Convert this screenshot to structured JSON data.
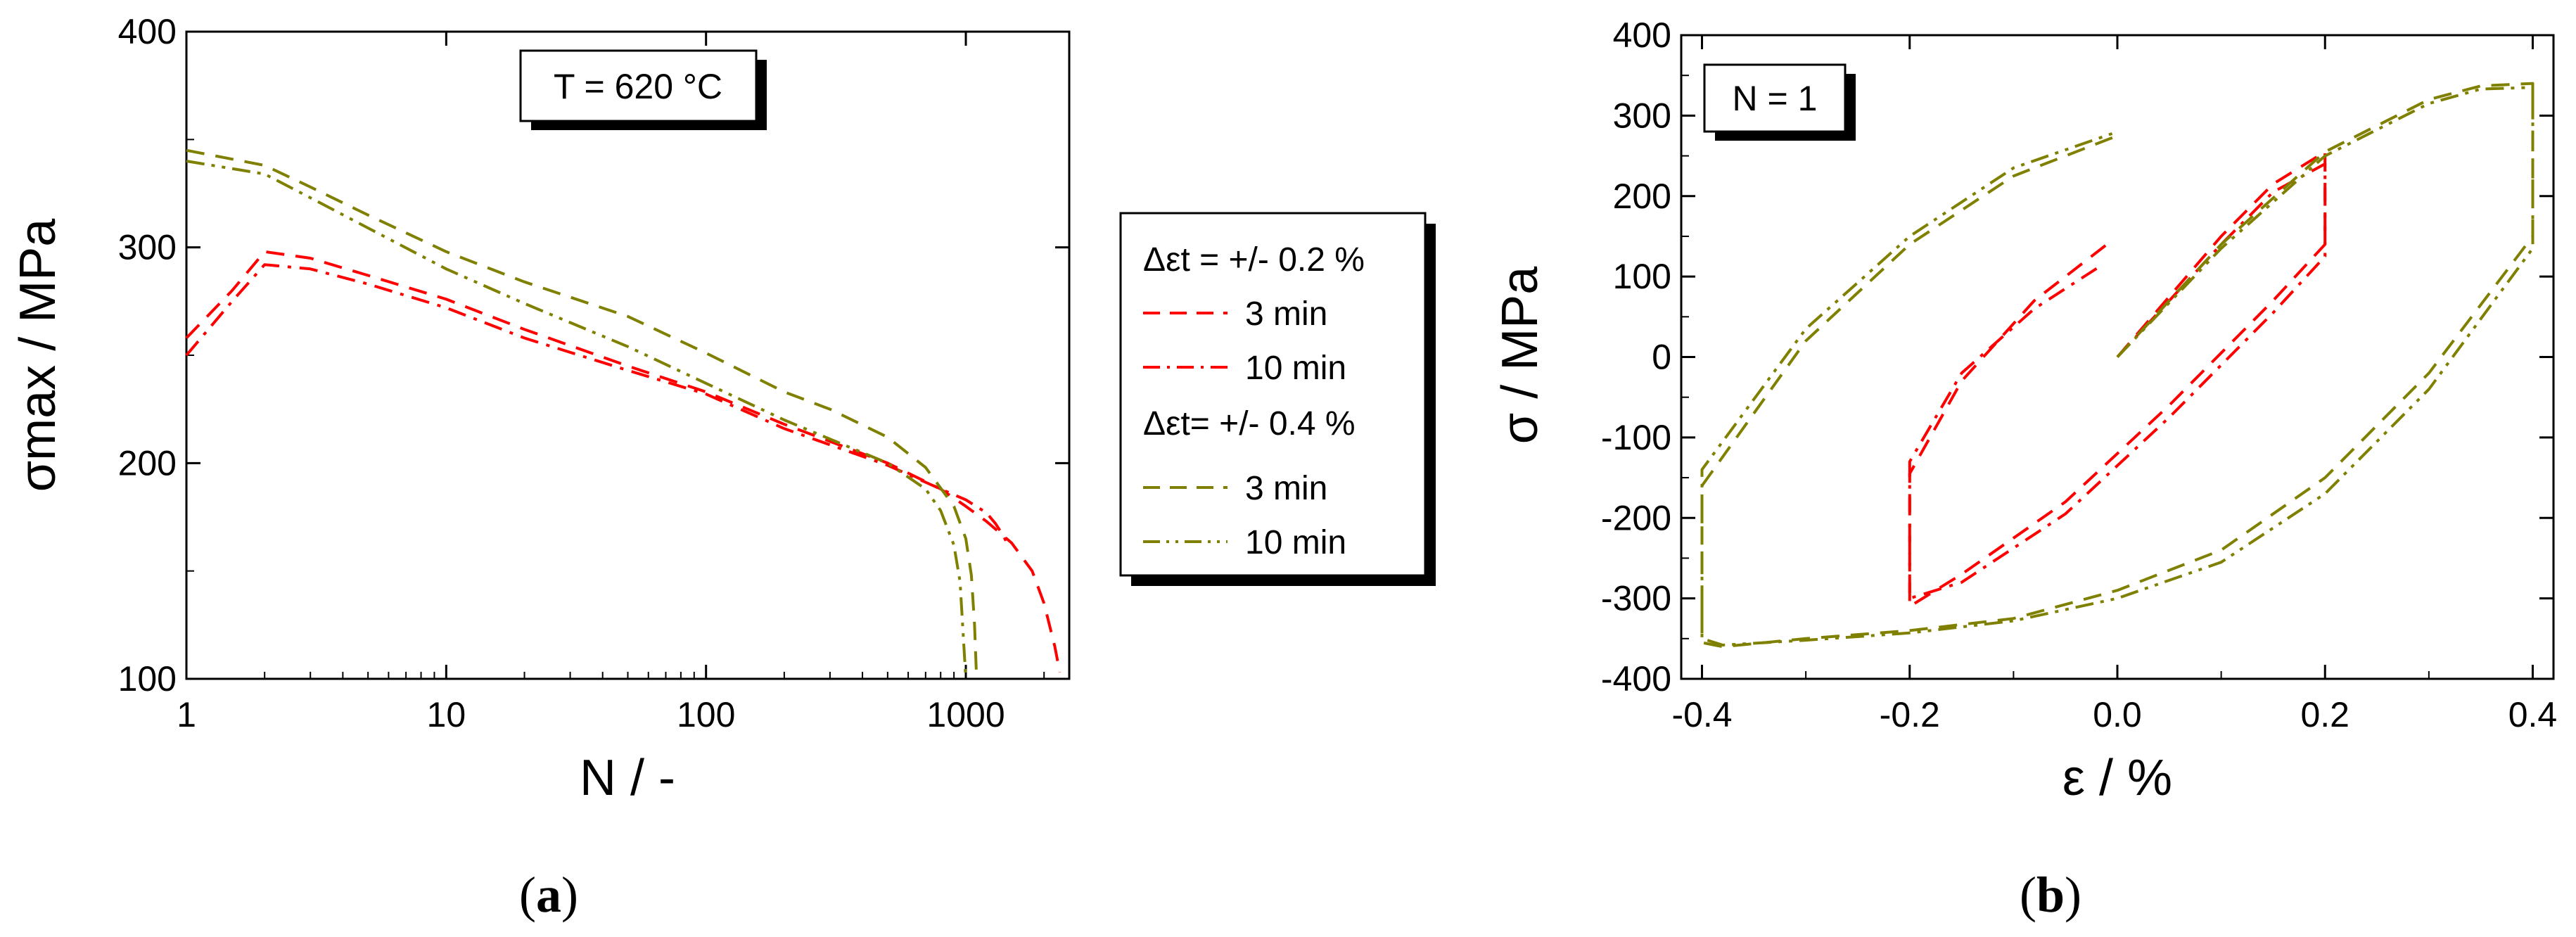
{
  "panel_labels": {
    "a": "a",
    "b": "b"
  },
  "chart_data": [
    {
      "type": "line",
      "panel": "a",
      "xlabel": "N / -",
      "ylabel": "σmax / MPa",
      "xscale": "log",
      "xlim": [
        1,
        2500
      ],
      "ylim": [
        100,
        400
      ],
      "xticks": [
        1,
        10,
        100,
        1000
      ],
      "xtick_labels": [
        "1",
        "10",
        "100",
        "1000"
      ],
      "yticks": [
        100,
        200,
        300,
        400
      ],
      "ytick_labels": [
        "100",
        "200",
        "300",
        "400"
      ],
      "annotation": "T = 620 °C",
      "legend": {
        "placement": "right, outside",
        "groups": [
          {
            "header": "Δεt = +/- 0.2 %",
            "entries": [
              "3 min",
              "10 min"
            ]
          },
          {
            "header": "Δεt= +/- 0.4 %",
            "entries": [
              "3 min",
              "10 min"
            ]
          }
        ]
      },
      "series": [
        {
          "name": "+/- 0.2 %, 3 min",
          "color": "#ff0000",
          "dash": "dashed",
          "x": [
            1,
            1.5,
            2,
            3,
            5,
            10,
            20,
            50,
            100,
            200,
            500,
            800,
            1000,
            1200,
            1500,
            1800,
            2000,
            2200,
            2300
          ],
          "y": [
            258,
            280,
            298,
            295,
            287,
            276,
            262,
            245,
            233,
            218,
            200,
            188,
            180,
            173,
            163,
            150,
            135,
            115,
            103
          ]
        },
        {
          "name": "+/- 0.2 %, 10 min",
          "color": "#ff0000",
          "dash": "dashdot",
          "x": [
            1,
            1.5,
            2,
            3,
            5,
            10,
            20,
            50,
            100,
            200,
            500,
            800,
            1000,
            1200,
            1300,
            1400,
            1450
          ],
          "y": [
            250,
            275,
            292,
            290,
            283,
            272,
            258,
            243,
            232,
            216,
            199,
            188,
            183,
            177,
            172,
            166,
            162
          ]
        },
        {
          "name": "+/- 0.4 %, 3 min",
          "color": "#808000",
          "dash": "dashed",
          "x": [
            1,
            2,
            3,
            5,
            10,
            20,
            50,
            100,
            200,
            300,
            500,
            700,
            900,
            1000,
            1050,
            1080,
            1100
          ],
          "y": [
            345,
            338,
            328,
            315,
            298,
            284,
            268,
            251,
            233,
            225,
            212,
            198,
            180,
            165,
            148,
            125,
            100
          ]
        },
        {
          "name": "+/- 0.4 %, 10 min",
          "color": "#808000",
          "dash": "dashdotdot",
          "x": [
            1,
            2,
            3,
            5,
            10,
            20,
            50,
            100,
            200,
            500,
            700,
            800,
            900,
            950,
            1000
          ],
          "y": [
            340,
            334,
            323,
            309,
            290,
            274,
            254,
            237,
            220,
            200,
            188,
            178,
            162,
            145,
            100
          ]
        }
      ]
    },
    {
      "type": "line",
      "panel": "b",
      "xlabel": "ε / %",
      "ylabel": "σ / MPa",
      "xlim": [
        -0.42,
        0.42
      ],
      "ylim": [
        -400,
        400
      ],
      "xticks": [
        -0.4,
        -0.2,
        0.0,
        0.2,
        0.4
      ],
      "xtick_labels": [
        "-0.4",
        "-0.2",
        "0.0",
        "0.2",
        "0.4"
      ],
      "yticks": [
        -400,
        -300,
        -200,
        -100,
        0,
        100,
        200,
        300,
        400
      ],
      "ytick_labels": [
        "-400",
        "-300",
        "-200",
        "-100",
        "0",
        "100",
        "200",
        "300",
        "400"
      ],
      "annotation": "N = 1",
      "series": [
        {
          "name": "+/- 0.2 %, 3 min",
          "color": "#ff0000",
          "dash": "dashed",
          "x": [
            0.0,
            0.05,
            0.1,
            0.15,
            0.2,
            0.2,
            0.15,
            0.05,
            -0.05,
            -0.15,
            -0.2,
            -0.2,
            -0.15,
            -0.08,
            -0.01
          ],
          "y": [
            0,
            75,
            150,
            215,
            255,
            140,
            70,
            -60,
            -180,
            -270,
            -310,
            -145,
            -30,
            70,
            140
          ]
        },
        {
          "name": "+/- 0.2 %, 10 min",
          "color": "#ff0000",
          "dash": "dashdot",
          "x": [
            0.0,
            0.05,
            0.1,
            0.15,
            0.2,
            0.2,
            0.15,
            0.05,
            -0.05,
            -0.15,
            -0.2,
            -0.2,
            -0.15,
            -0.08,
            -0.02
          ],
          "y": [
            0,
            70,
            140,
            205,
            240,
            125,
            55,
            -75,
            -195,
            -280,
            -300,
            -130,
            -20,
            60,
            110
          ]
        },
        {
          "name": "+/- 0.4 %, 3 min",
          "color": "#808000",
          "dash": "dashed",
          "x": [
            0.0,
            0.1,
            0.2,
            0.3,
            0.35,
            0.4,
            0.4,
            0.3,
            0.2,
            0.1,
            0.0,
            -0.1,
            -0.2,
            -0.3,
            -0.38,
            -0.4,
            -0.4,
            -0.3,
            -0.2,
            -0.1,
            0.0
          ],
          "y": [
            0,
            140,
            255,
            320,
            337,
            340,
            150,
            -20,
            -150,
            -240,
            -290,
            -325,
            -340,
            -350,
            -360,
            -355,
            -160,
            20,
            140,
            225,
            275
          ]
        },
        {
          "name": "+/- 0.4 %, 10 min",
          "color": "#808000",
          "dash": "dashdotdot",
          "x": [
            0.0,
            0.1,
            0.2,
            0.3,
            0.35,
            0.4,
            0.4,
            0.3,
            0.2,
            0.1,
            0.0,
            -0.1,
            -0.2,
            -0.3,
            -0.38,
            -0.4,
            -0.4,
            -0.3,
            -0.2,
            -0.1,
            0.0
          ],
          "y": [
            0,
            135,
            250,
            315,
            333,
            335,
            135,
            -40,
            -170,
            -255,
            -300,
            -328,
            -343,
            -352,
            -358,
            -350,
            -140,
            35,
            150,
            235,
            280
          ]
        }
      ]
    }
  ]
}
